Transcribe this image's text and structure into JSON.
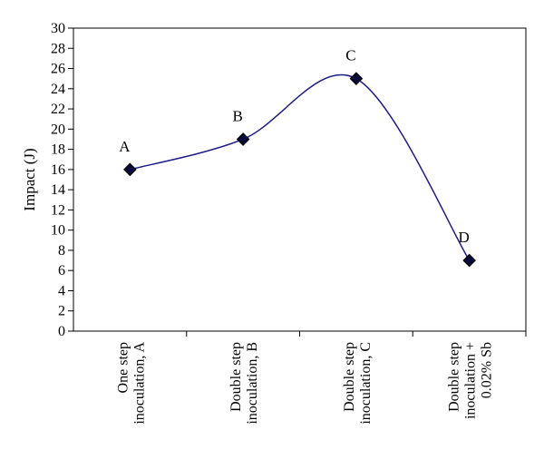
{
  "chart_data": {
    "type": "line",
    "title": "",
    "xlabel": "",
    "ylabel": "Impact (J)",
    "ylim": [
      0,
      30
    ],
    "yticks": [
      0,
      2,
      4,
      6,
      8,
      10,
      12,
      14,
      16,
      18,
      20,
      22,
      24,
      26,
      28,
      30
    ],
    "grid": false,
    "legend": "none",
    "smooth": true,
    "categories": [
      [
        "One step",
        "inoculation, A"
      ],
      [
        "Double step",
        "inoculation, B"
      ],
      [
        "Double step",
        "inoculation, C"
      ],
      [
        "Double step",
        "inoculation +",
        "0.02% Sb"
      ]
    ],
    "series": [
      {
        "values": [
          16,
          19,
          25,
          7
        ],
        "point_labels": [
          "A",
          "B",
          "C",
          "D"
        ],
        "line_color": "#1c1c8a",
        "marker": "diamond",
        "marker_color": "#000000"
      }
    ]
  }
}
